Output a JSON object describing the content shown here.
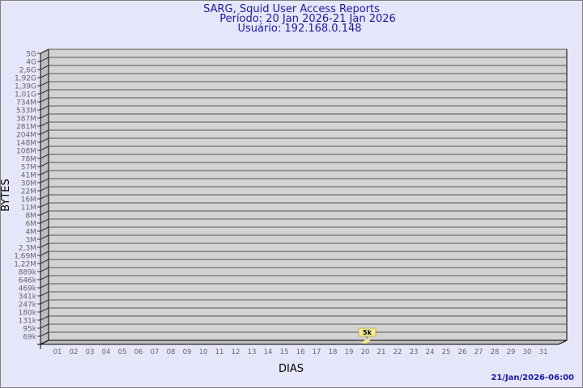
{
  "chart_data": {
    "type": "bar",
    "title": "SARG, Squid User Access Reports",
    "subtitle_period": "Período: 20 Jan 2026-21 Jan 2026",
    "subtitle_user": "Usuário: 192.168.0.148",
    "xlabel": "DIAS",
    "ylabel": "BYTES",
    "timestamp": "21/Jan/2026-06:00",
    "y_scale": "log",
    "y_tick_labels": [
      "5G",
      "4G",
      "2,6G",
      "1,92G",
      "1,39G",
      "1,01G",
      "734M",
      "533M",
      "387M",
      "281M",
      "204M",
      "148M",
      "108M",
      "78M",
      "57M",
      "41M",
      "30M",
      "22M",
      "16M",
      "11M",
      "8M",
      "6M",
      "4M",
      "3M",
      "2,3M",
      "1,69M",
      "1,22M",
      "889k",
      "646k",
      "469k",
      "341k",
      "247k",
      "180k",
      "131k",
      "95k",
      "69k"
    ],
    "categories": [
      "01",
      "02",
      "03",
      "04",
      "05",
      "06",
      "07",
      "08",
      "09",
      "10",
      "11",
      "12",
      "13",
      "14",
      "15",
      "16",
      "17",
      "18",
      "19",
      "20",
      "21",
      "22",
      "23",
      "24",
      "25",
      "26",
      "27",
      "28",
      "29",
      "30",
      "31"
    ],
    "bars": [
      {
        "category": "20",
        "label": "5k",
        "value": 5000
      }
    ],
    "grid": true,
    "colors": {
      "bar": "#f5e88a",
      "wall": "#d3d3d3",
      "side": "#bebebe",
      "title": "#1a1aa0",
      "ticks": "#666666"
    }
  }
}
